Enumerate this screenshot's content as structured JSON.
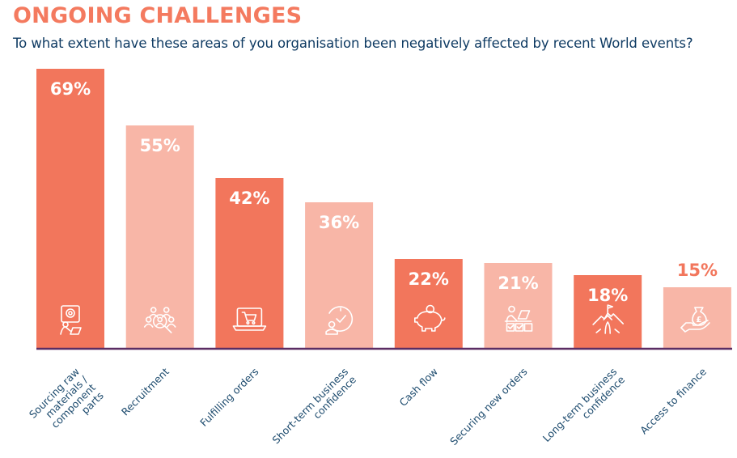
{
  "header": {
    "title": "ONGOING CHALLENGES",
    "subtitle": "To what extent have these areas of you organisation been negatively affected by recent World events?"
  },
  "colors": {
    "dark": "#f2765c",
    "light": "#f8b6a7",
    "title": "#f47a5f",
    "text": "#0f3b63",
    "axis": "#5b2d63",
    "label_on_bar": "#ffffff"
  },
  "chart_data": {
    "type": "bar",
    "title": "ONGOING CHALLENGES",
    "subtitle": "To what extent have these areas of you organisation been negatively affected by recent World events?",
    "xlabel": "",
    "ylabel": "",
    "ylim": [
      0,
      69
    ],
    "grid": false,
    "legend": "none",
    "categories": [
      [
        "Sourcing raw",
        "materials /",
        "component",
        "parts"
      ],
      [
        "Recruitment"
      ],
      [
        "Fulfilling orders"
      ],
      [
        "Short-term business",
        "confidence"
      ],
      [
        "Cash flow"
      ],
      [
        "Securing new orders"
      ],
      [
        "Long-term business",
        "confidence"
      ],
      [
        "Access to finance"
      ]
    ],
    "values": [
      69,
      55,
      42,
      36,
      22,
      21,
      18,
      15
    ],
    "value_labels": [
      "69%",
      "55%",
      "42%",
      "36%",
      "22%",
      "21%",
      "18%",
      "15%"
    ],
    "shades": [
      "dark",
      "light",
      "dark",
      "light",
      "dark",
      "light",
      "dark",
      "light"
    ],
    "icons": [
      "settings-person-icon",
      "people-search-icon",
      "laptop-cart-icon",
      "clock-person-icon",
      "piggy-bank-icon",
      "person-desk-checklist-icon",
      "mountain-flag-icon",
      "hand-money-bag-icon"
    ],
    "label_outside": [
      false,
      false,
      false,
      false,
      false,
      false,
      false,
      true
    ]
  }
}
